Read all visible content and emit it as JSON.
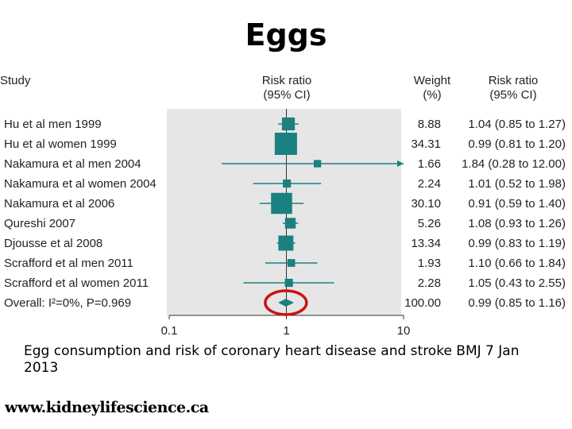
{
  "slide": {
    "title": "Eggs",
    "caption": "Egg consumption and risk of coronary heart disease and stroke BMJ 7 Jan 2013",
    "website": "www.kidneylifescience.ca"
  },
  "colors": {
    "marker": "#1a8080",
    "panel": "#e6e6e6",
    "highlight_circle": "#cc1111"
  },
  "chart_data": {
    "type": "forest",
    "title": "",
    "headers": {
      "study": "Study",
      "risk_ratio": "Risk ratio",
      "risk_ratio_ci": "(95% CI)",
      "weight": "Weight",
      "weight_unit": "(%)",
      "risk_ratio_right": "Risk ratio",
      "risk_ratio_right_ci": "(95% CI)"
    },
    "x_scale": "log",
    "x_ticks": [
      0.1,
      1,
      10
    ],
    "x_tick_labels": [
      "0.1",
      "1",
      "10"
    ],
    "xlim": [
      0.1,
      10
    ],
    "reference_line": 1,
    "studies": [
      {
        "label": "Hu et al men 1999",
        "rr": 1.04,
        "lo": 0.85,
        "hi": 1.27,
        "weight": 8.88,
        "weight_text": "8.88",
        "ci_text": "1.04 (0.85 to 1.27)"
      },
      {
        "label": "Hu et al women 1999",
        "rr": 0.99,
        "lo": 0.81,
        "hi": 1.2,
        "weight": 34.31,
        "weight_text": "34.31",
        "ci_text": "0.99 (0.81 to 1.20)"
      },
      {
        "label": "Nakamura et al men 2004",
        "rr": 1.84,
        "lo": 0.28,
        "hi": 12.0,
        "weight": 1.66,
        "weight_text": "1.66",
        "ci_text": "1.84 (0.28 to 12.00)"
      },
      {
        "label": "Nakamura et al women 2004",
        "rr": 1.01,
        "lo": 0.52,
        "hi": 1.98,
        "weight": 2.24,
        "weight_text": "2.24",
        "ci_text": "1.01 (0.52 to 1.98)"
      },
      {
        "label": "Nakamura et al 2006",
        "rr": 0.91,
        "lo": 0.59,
        "hi": 1.4,
        "weight": 30.1,
        "weight_text": "30.10",
        "ci_text": "0.91 (0.59 to 1.40)"
      },
      {
        "label": "Qureshi 2007",
        "rr": 1.08,
        "lo": 0.93,
        "hi": 1.26,
        "weight": 5.26,
        "weight_text": "5.26",
        "ci_text": "1.08 (0.93 to 1.26)"
      },
      {
        "label": "Djousse et al 2008",
        "rr": 0.99,
        "lo": 0.83,
        "hi": 1.19,
        "weight": 13.34,
        "weight_text": "13.34",
        "ci_text": "0.99 (0.83 to 1.19)"
      },
      {
        "label": "Scrafford et al men 2011",
        "rr": 1.1,
        "lo": 0.66,
        "hi": 1.84,
        "weight": 1.93,
        "weight_text": "1.93",
        "ci_text": "1.10 (0.66 to 1.84)"
      },
      {
        "label": "Scrafford et al women 2011",
        "rr": 1.05,
        "lo": 0.43,
        "hi": 2.55,
        "weight": 2.28,
        "weight_text": "2.28",
        "ci_text": "1.05 (0.43 to 2.55)"
      }
    ],
    "overall": {
      "label": "Overall: I²=0%, P=0.969",
      "rr": 0.99,
      "lo": 0.85,
      "hi": 1.16,
      "weight_text": "100.00",
      "ci_text": "0.99 (0.85 to 1.16)",
      "highlighted": true
    }
  }
}
